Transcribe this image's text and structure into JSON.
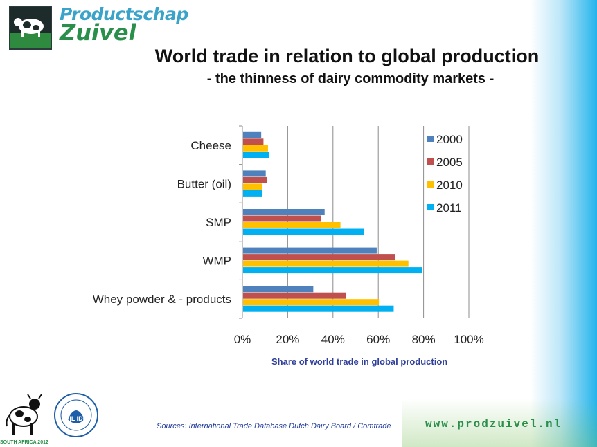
{
  "header": {
    "logo_line1": "Productschap",
    "logo_line2": "Zuivel",
    "title": "World trade in relation to global production",
    "subtitle": "- the thinness of dairy commodity markets -"
  },
  "footer": {
    "sources": "Sources: International Trade Database Dutch Dairy Board / Comtrade",
    "website": "www.prodzuivel.nl",
    "event_caption": "SOUTH AFRICA 2012",
    "fil_text": "FIL IDF"
  },
  "chart_data": {
    "type": "bar",
    "orientation": "horizontal",
    "categories": [
      "Cheese",
      "Butter (oil)",
      "SMP",
      "WMP",
      "Whey powder & - products"
    ],
    "series": [
      {
        "name": "2000",
        "color": "#4f81bd",
        "values": [
          8,
          10,
          36,
          59,
          31
        ]
      },
      {
        "name": "2005",
        "color": "#c0504d",
        "values": [
          9,
          10.5,
          34.5,
          67,
          45.5
        ]
      },
      {
        "name": "2010",
        "color": "#ffc000",
        "values": [
          11,
          8.5,
          43,
          73,
          60
        ]
      },
      {
        "name": "2011",
        "color": "#00b0f0",
        "values": [
          11.5,
          8.5,
          53.5,
          79,
          66.5
        ]
      }
    ],
    "xlim": [
      0,
      100
    ],
    "xticks": [
      "0%",
      "20%",
      "40%",
      "60%",
      "80%",
      "100%"
    ],
    "xlabel": "Share of world trade in global production",
    "legend_placement": "top-right",
    "grid": true
  }
}
